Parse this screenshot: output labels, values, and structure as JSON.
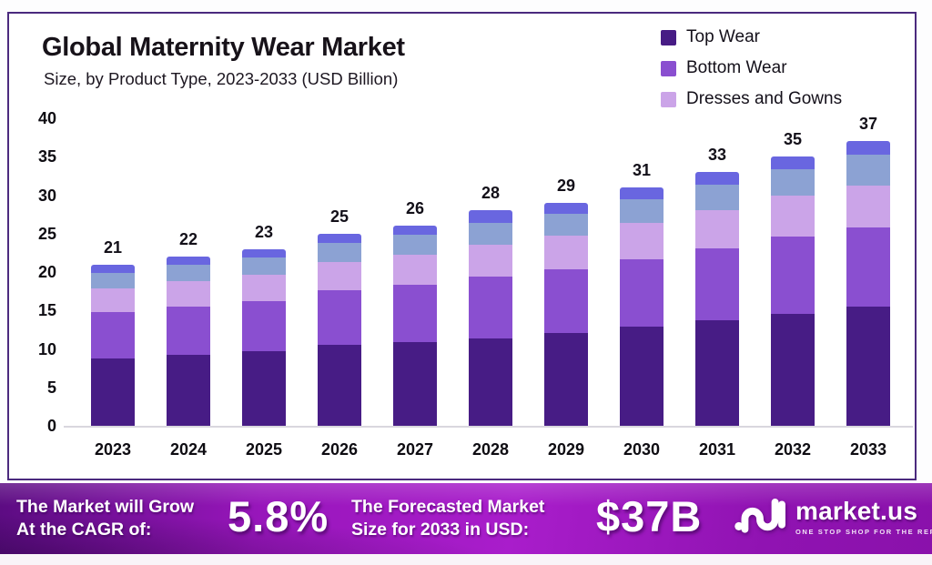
{
  "header": {
    "title": "Global Maternity Wear Market",
    "subtitle": "Size, by Product Type, 2023-2033 (USD Billion)"
  },
  "chart_data": {
    "type": "bar",
    "stacked": true,
    "title": "Global Maternity Wear Market Size, by Product Type, 2023-2033 (USD Billion)",
    "categories": [
      "2023",
      "2024",
      "2025",
      "2026",
      "2027",
      "2028",
      "2029",
      "2030",
      "2031",
      "2032",
      "2033"
    ],
    "totals": [
      21,
      22,
      23,
      25,
      26,
      28,
      29,
      31,
      33,
      35,
      37
    ],
    "series": [
      {
        "name": "Top Wear",
        "in_legend": true,
        "color": "#471c85",
        "values": [
          8.8,
          9.2,
          9.7,
          10.5,
          10.9,
          11.4,
          12.1,
          12.9,
          13.7,
          14.6,
          15.5
        ]
      },
      {
        "name": "Bottom Wear",
        "in_legend": true,
        "color": "#8a4fd0",
        "values": [
          6.0,
          6.3,
          6.5,
          7.1,
          7.4,
          8.0,
          8.2,
          8.8,
          9.4,
          10.0,
          10.3
        ]
      },
      {
        "name": "Dresses and Gowns",
        "in_legend": true,
        "color": "#cba4e8",
        "values": [
          3.1,
          3.3,
          3.4,
          3.7,
          3.9,
          4.2,
          4.4,
          4.7,
          5.0,
          5.3,
          5.5
        ]
      },
      {
        "name": "Unlabeled (light blue)",
        "in_legend": false,
        "color": "#8ca2d3",
        "values": [
          2.0,
          2.1,
          2.3,
          2.5,
          2.6,
          2.8,
          2.9,
          3.1,
          3.3,
          3.5,
          4.0
        ]
      },
      {
        "name": "Unlabeled (periwinkle)",
        "in_legend": false,
        "color": "#6966e0",
        "values": [
          1.1,
          1.1,
          1.1,
          1.2,
          1.2,
          1.6,
          1.4,
          1.5,
          1.6,
          1.6,
          1.7
        ]
      }
    ],
    "ylim": [
      0,
      40
    ],
    "yticks": [
      0,
      5,
      10,
      15,
      20,
      25,
      30,
      35,
      40
    ],
    "grid": false,
    "legend_position": "top-right",
    "value_labels": "above bars"
  },
  "banner": {
    "cagr_label_line1": "The Market will Grow",
    "cagr_label_line2": "At the CAGR of:",
    "cagr_value": "5.8%",
    "forecast_label_line1": "The Forecasted Market",
    "forecast_label_line2": "Size for 2033 in USD:",
    "forecast_value": "$37B",
    "brand_name": "market.us",
    "brand_tagline": "ONE STOP SHOP FOR THE REPORTS",
    "accent_color": "#a91dcb"
  },
  "frame": {
    "card_border_color": "#4b2a7e"
  }
}
